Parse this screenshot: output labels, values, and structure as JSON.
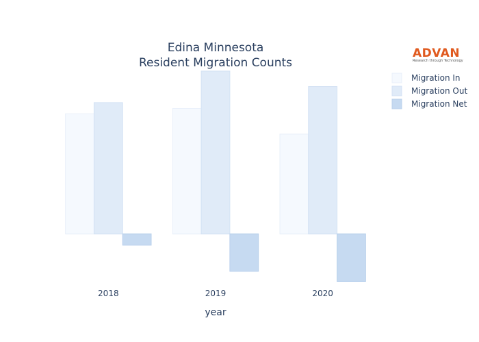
{
  "logo": {
    "name": "ADVAN",
    "tagline": "Research through Technology",
    "color": "#e05a1f"
  },
  "chart_data": {
    "type": "bar",
    "title": [
      "Edina Minnesota",
      "Resident Migration Counts"
    ],
    "xlabel": "year",
    "ylabel": "",
    "categories": [
      "2018",
      "2019",
      "2020"
    ],
    "series": [
      {
        "name": "Migration In",
        "values": [
          2250,
          2350,
          1870
        ],
        "color": "#f5f9fe",
        "stroke": "#e9f0fa"
      },
      {
        "name": "Migration Out",
        "values": [
          2460,
          3050,
          2760
        ],
        "color": "#e0ebf8",
        "stroke": "#d3e2f4"
      },
      {
        "name": "Migration Net",
        "values": [
          -210,
          -700,
          -890
        ],
        "color": "#c6daf1",
        "stroke": "#b9d0ec"
      }
    ],
    "ylim": [
      -1000,
      3100
    ],
    "grid": false,
    "legend": "top-right"
  }
}
